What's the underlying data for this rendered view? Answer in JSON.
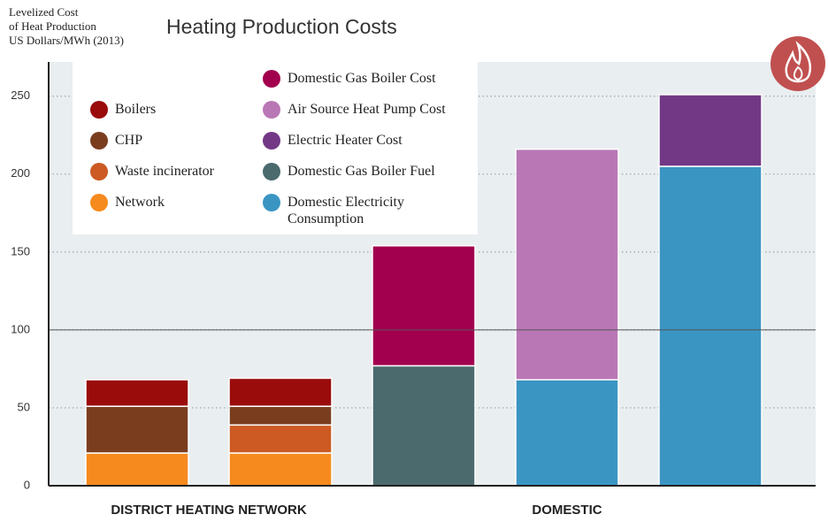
{
  "chart_data": {
    "type": "stacked-bar",
    "title": "Heating Production Costs",
    "y_label": [
      "Levelized Cost",
      "of Heat Production",
      "US Dollars/MWh (2013)"
    ],
    "categories": [
      null,
      null,
      null,
      null,
      null
    ],
    "groups": [
      {
        "label": "DISTRICT HEATING NETWORK",
        "count": 2
      },
      {
        "label": "DOMESTIC",
        "count": 3
      }
    ],
    "series": [
      {
        "name": "Boilers",
        "color": "#9a0b0b",
        "values": [
          17,
          18,
          null,
          null,
          null
        ]
      },
      {
        "name": "CHP",
        "color": "#7a3e1f",
        "values": [
          30,
          12,
          null,
          null,
          null
        ]
      },
      {
        "name": "Waste incinerator",
        "color": "#cc5a22",
        "values": [
          null,
          18,
          null,
          null,
          null
        ]
      },
      {
        "name": "Network",
        "color": "#f68a1e",
        "values": [
          21,
          21,
          null,
          null,
          null
        ]
      },
      {
        "name": "Domestic Gas Boiler Cost",
        "color": "#a2004f",
        "values": [
          null,
          null,
          77,
          null,
          null
        ]
      },
      {
        "name": "Air Source Heat Pump Cost",
        "color": "#b977b5",
        "values": [
          null,
          null,
          null,
          148,
          null
        ]
      },
      {
        "name": "Electric Heater Cost",
        "color": "#723886",
        "values": [
          null,
          null,
          null,
          null,
          46
        ]
      },
      {
        "name": "Domestic Gas Boiler Fuel",
        "color": "#4b6a6e",
        "values": [
          null,
          null,
          77,
          null,
          null
        ]
      },
      {
        "name": "Domestic Electricity Consumption",
        "color": "#3a95c3",
        "values": [
          null,
          null,
          null,
          68,
          205
        ]
      }
    ],
    "ylim": [
      0,
      272
    ],
    "yticks": [
      0,
      50,
      100,
      150,
      200,
      250
    ],
    "reference_line": 100,
    "grid": true
  }
}
